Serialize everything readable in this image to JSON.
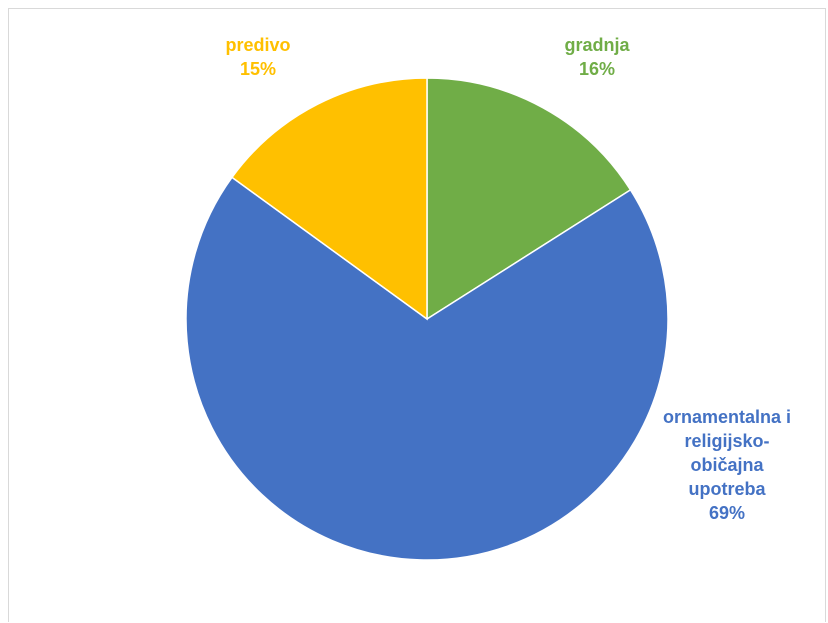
{
  "chart_data": {
    "type": "pie",
    "title": "",
    "slices": [
      {
        "label": "gradnja",
        "label_lines": [
          "gradnja"
        ],
        "value": 16,
        "percent_text": "16%",
        "color": "#70ad47"
      },
      {
        "label": "ornamentalna i religijsko-običajna upotreba",
        "label_lines": [
          "ornamentalna i",
          "religijsko-",
          "običajna",
          "upotreba"
        ],
        "value": 69,
        "percent_text": "69%",
        "color": "#4472c4"
      },
      {
        "label": "predivo",
        "label_lines": [
          "predivo"
        ],
        "value": 15,
        "percent_text": "15%",
        "color": "#ffc000"
      }
    ],
    "start": "12 o'clock",
    "direction": "clockwise",
    "legend": "none",
    "data_labels": "category name and percentage, colored like slice"
  }
}
